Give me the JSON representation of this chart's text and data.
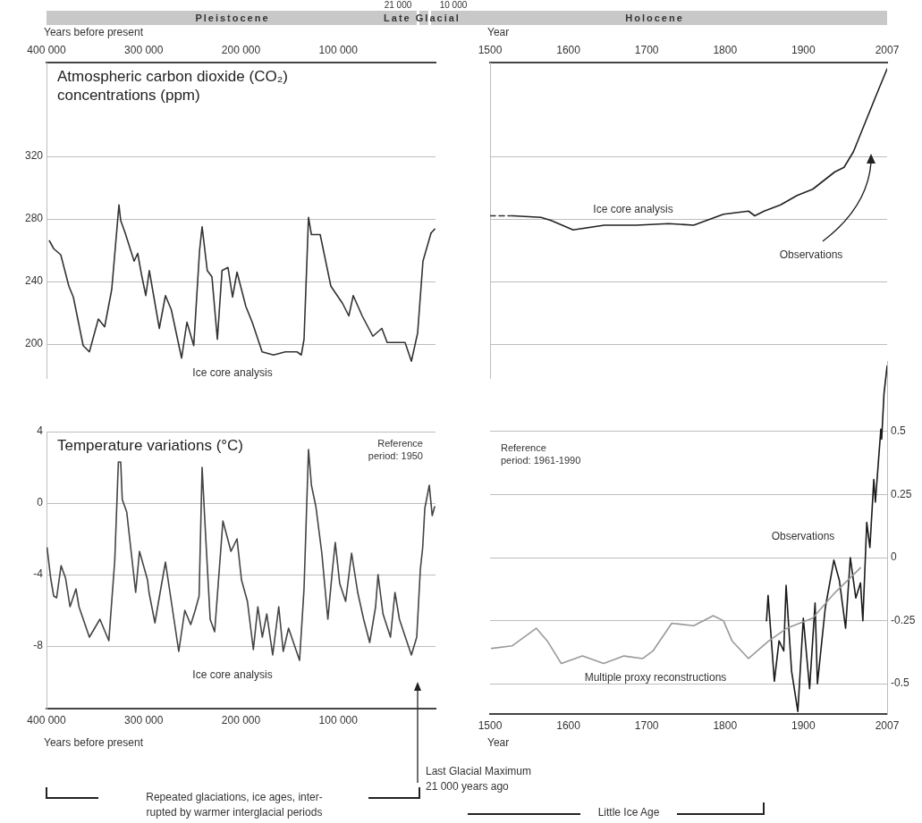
{
  "chart_data": [
    {
      "type": "line",
      "title": "Atmospheric carbon dioxide (CO₂)\nconcentrations (ppm)",
      "xlabel": "Years before present",
      "xlim": [
        400000,
        0
      ],
      "xticks": [
        {
          "value": 400000,
          "label": "400 000"
        },
        {
          "value": 300000,
          "label": "300 000"
        },
        {
          "value": 200000,
          "label": "200 000"
        },
        {
          "value": 100000,
          "label": "100 000"
        }
      ],
      "ylim": [
        178,
        380
      ],
      "yticks": [
        200,
        240,
        280,
        320
      ],
      "grid": "y",
      "annotations": [
        "21 000",
        "10 000",
        "Pleistocene",
        "Late Glacial",
        "Ice core analysis"
      ],
      "series": [
        {
          "color": "#333333",
          "x": [
            397000,
            392600,
            385300,
            377000,
            372400,
            362300,
            355900,
            346700,
            340200,
            332900,
            325500,
            323700,
            319100,
            309900,
            306200,
            302500,
            297900,
            294300,
            284000,
            277700,
            271700,
            261100,
            255600,
            248600,
            242600,
            240000,
            234700,
            229900,
            224300,
            219500,
            213400,
            208700,
            204100,
            195000,
            188500,
            178300,
            166600,
            154400,
            142400,
            138000,
            135200,
            130600,
            127600,
            118600,
            107600,
            95600,
            89100,
            84600,
            75400,
            64400,
            55200,
            49700,
            31300,
            24800,
            18400,
            12900,
            4600
          ],
          "values": [
            266,
            261,
            257,
            237,
            230,
            199,
            195,
            216,
            211,
            235,
            289,
            279,
            271,
            253,
            258,
            245,
            231,
            247,
            210,
            231,
            222,
            191,
            214,
            199,
            260,
            275,
            247,
            243,
            203,
            247,
            249,
            230,
            246,
            224,
            214,
            195,
            193,
            195,
            195,
            193,
            203,
            281,
            270,
            270,
            237,
            226,
            218,
            231,
            218,
            205,
            210,
            201,
            201,
            189,
            207,
            253,
            271
          ]
        },
        {
          "color": "#333333",
          "line_style": "dashed",
          "x": [
            4600,
            0
          ],
          "values": [
            271,
            274
          ]
        }
      ]
    },
    {
      "type": "line",
      "xlabel": "Year",
      "xlim": [
        1500,
        2007
      ],
      "xticks": [
        1500,
        1600,
        1700,
        1800,
        1900,
        2007
      ],
      "ylim": [
        178,
        380
      ],
      "yticks": [
        200,
        240,
        280,
        320
      ],
      "grid": "y",
      "tick_labels": "x",
      "annotations": [
        "Holocene",
        "Ice core analysis",
        "Observations"
      ],
      "series": [
        {
          "color": "#333333",
          "line_style": "dashed",
          "x": [
            1500,
            1529
          ],
          "values": [
            282,
            282
          ]
        },
        {
          "color": "#222222",
          "x": [
            1529,
            1565,
            1578,
            1606,
            1646,
            1687,
            1728,
            1760,
            1798,
            1830,
            1838,
            1850,
            1871,
            1892,
            1912,
            1940,
            1952,
            1964,
            1993,
            2007
          ],
          "values": [
            282,
            281,
            279,
            273,
            276,
            276,
            277,
            276,
            283,
            285,
            282,
            285,
            289,
            295,
            299,
            310,
            313,
            323,
            359,
            376
          ]
        }
      ]
    },
    {
      "type": "line",
      "title": "Temperature variations (°C)",
      "xlabel": "Years before present",
      "xlim": [
        400000,
        0
      ],
      "xticks": [
        {
          "value": 400000,
          "label": "400 000"
        },
        {
          "value": 300000,
          "label": "300 000"
        },
        {
          "value": 200000,
          "label": "200 000"
        },
        {
          "value": 100000,
          "label": "100 000"
        }
      ],
      "ylim": [
        -11.5,
        4
      ],
      "yticks": [
        -8,
        -4,
        0,
        4
      ],
      "grid": "y",
      "annotations": [
        "Reference\nperiod: 1950",
        "Ice core analysis",
        "Last Glacial Maximum\n21 000 years ago",
        "Repeated glaciations, ice ages, inter-\nrupted by warmer interglacial periods"
      ],
      "series": [
        {
          "color": "#444444",
          "x": [
            399400,
            395700,
            392600,
            389600,
            385000,
            380400,
            375800,
            369700,
            366600,
            355900,
            345100,
            335900,
            329800,
            326100,
            323700,
            322100,
            317500,
            308300,
            304400,
            296100,
            294600,
            288500,
            285400,
            277700,
            264000,
            257800,
            251700,
            247100,
            243100,
            240000,
            236400,
            231700,
            227100,
            218600,
            210300,
            204100,
            199500,
            193400,
            187300,
            182700,
            178100,
            173500,
            167400,
            161200,
            156600,
            151100,
            139800,
            135200,
            130600,
            127600,
            123000,
            116900,
            110700,
            106100,
            103100,
            98500,
            92400,
            86300,
            80000,
            73900,
            67700,
            61600,
            59100,
            54000,
            46300,
            41700,
            37100,
            31000,
            24800,
            19300,
            15600,
            13200,
            11000,
            6400,
            3400,
            900
          ],
          "values": [
            -2.5,
            -4.2,
            -5.2,
            -5.3,
            -3.5,
            -4.2,
            -5.8,
            -4.8,
            -5.8,
            -7.5,
            -6.5,
            -7.7,
            -3.2,
            2.3,
            2.3,
            0.2,
            -0.5,
            -5,
            -2.7,
            -4.3,
            -5,
            -6.7,
            -5.7,
            -3.3,
            -8.3,
            -6,
            -6.8,
            -6,
            -5.2,
            2,
            -1.8,
            -6.5,
            -7.2,
            -1,
            -2.7,
            -2,
            -4.3,
            -5.5,
            -8.2,
            -5.8,
            -7.5,
            -6.2,
            -8.5,
            -5.8,
            -8.3,
            -7,
            -8.8,
            -4.8,
            3,
            1,
            -0.2,
            -2.8,
            -6.5,
            -3.8,
            -2.2,
            -4.5,
            -5.5,
            -2.8,
            -5,
            -6.5,
            -7.8,
            -5.8,
            -4,
            -6.2,
            -7.5,
            -5,
            -6.5,
            -7.5,
            -8.5,
            -7.5,
            -3.7,
            -2.5,
            -0.3,
            1,
            -0.7,
            -0.2
          ]
        }
      ]
    },
    {
      "type": "line",
      "xlabel": "Year",
      "xlim": [
        1500,
        2007
      ],
      "xticks": [
        1500,
        1600,
        1700,
        1800,
        1900,
        2007
      ],
      "y2lim": [
        -0.62,
        0.78
      ],
      "y2ticks": [
        0.5,
        0.25,
        0,
        -0.25,
        -0.5
      ],
      "grid": "y",
      "annotations": [
        "Reference\nperiod: 1961-1990",
        "Observations",
        "Multiple proxy reconstructions",
        "Little Ice Age"
      ],
      "series": [
        {
          "color": "#999999",
          "axis": "y2",
          "x": [
            1502,
            1528,
            1559,
            1573,
            1591,
            1618,
            1645,
            1671,
            1695,
            1708,
            1732,
            1760,
            1785,
            1798,
            1809,
            1830,
            1856,
            1879,
            1912,
            1940,
            1973
          ],
          "values": [
            -0.36,
            -0.35,
            -0.28,
            -0.33,
            -0.42,
            -0.39,
            -0.42,
            -0.39,
            -0.4,
            -0.37,
            -0.26,
            -0.27,
            -0.23,
            -0.25,
            -0.33,
            -0.4,
            -0.33,
            -0.28,
            -0.24,
            -0.14,
            -0.04
          ]
        },
        {
          "color": "#1a1a1a",
          "axis": "y2",
          "x": [
            1853,
            1855,
            1863,
            1869,
            1875,
            1878,
            1885,
            1893,
            1900,
            1908,
            1915,
            1918,
            1928,
            1939,
            1946,
            1954,
            1960,
            1967,
            1973,
            1976,
            1981,
            1985,
            1990,
            1992,
            1999,
            2000,
            2003,
            2007
          ],
          "values": [
            -0.25,
            -0.15,
            -0.49,
            -0.33,
            -0.37,
            -0.11,
            -0.45,
            -0.61,
            -0.24,
            -0.52,
            -0.18,
            -0.5,
            -0.2,
            -0.01,
            -0.09,
            -0.28,
            0,
            -0.16,
            -0.1,
            -0.25,
            0.14,
            0.04,
            0.31,
            0.22,
            0.51,
            0.47,
            0.65,
            0.76
          ]
        }
      ]
    }
  ]
}
